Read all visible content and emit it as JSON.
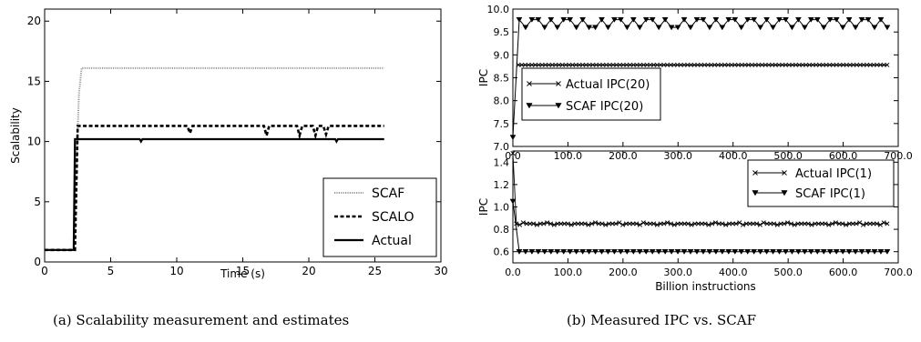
{
  "captions": {
    "a": "(a) Scalability measurement and estimates",
    "b": "(b) Measured IPC vs. SCAF"
  },
  "chart_data": [
    {
      "id": "a",
      "type": "line",
      "xlabel": "Time (s)",
      "ylabel": "Scalability",
      "xlim": [
        0,
        30
      ],
      "ylim": [
        0,
        21
      ],
      "xticks": [
        0,
        5,
        10,
        15,
        20,
        25,
        30
      ],
      "yticks": [
        0,
        5,
        10,
        15,
        20
      ],
      "legend": "bottom-right",
      "series": [
        {
          "name": "SCAF",
          "style": "dotted-gray",
          "x": [
            0,
            2.2,
            2.4,
            2.6,
            2.8,
            25.7
          ],
          "y": [
            1,
            1,
            8,
            14,
            16.1,
            16.1
          ]
        },
        {
          "name": "SCALO",
          "style": "dashed",
          "x": [
            0,
            2.3,
            2.5,
            3,
            10.8,
            11,
            11.2,
            16.6,
            16.8,
            17,
            19.1,
            19.3,
            19.5,
            20.3,
            20.5,
            20.7,
            21.1,
            21.3,
            21.5,
            25.7
          ],
          "y": [
            1,
            1,
            11.3,
            11.3,
            11.3,
            10.7,
            11.3,
            11.3,
            10.5,
            11.3,
            11.3,
            10.5,
            11.3,
            11.3,
            10.5,
            11.3,
            11.3,
            10.6,
            11.3,
            11.3
          ]
        },
        {
          "name": "Actual",
          "style": "solid",
          "x": [
            0,
            2.2,
            2.3,
            7.2,
            7.3,
            7.4,
            22.0,
            22.1,
            22.2,
            25.7
          ],
          "y": [
            1,
            1,
            10.2,
            10.2,
            10.0,
            10.2,
            10.2,
            10.0,
            10.2,
            10.2
          ]
        }
      ]
    },
    {
      "id": "b-top",
      "type": "line",
      "xlabel": "",
      "ylabel": "IPC",
      "xlim": [
        0,
        700
      ],
      "ylim": [
        7.0,
        10.0
      ],
      "xticks": [
        0,
        100,
        200,
        300,
        400,
        500,
        600,
        700
      ],
      "xticklabels": [
        "0.0",
        "100.0",
        "200.0",
        "300.0",
        "400.0",
        "500.0",
        "600.0",
        "700.0"
      ],
      "yticks": [
        7.0,
        7.5,
        8.0,
        8.5,
        9.0,
        9.5,
        10.0
      ],
      "yticklabels": [
        "7.0",
        "7.5",
        "8.0",
        "8.5",
        "9.0",
        "9.5",
        "10.0"
      ],
      "legend": "center-left",
      "series": [
        {
          "name": "Actual IPC(20)",
          "marker": "x",
          "x_start": 10,
          "x_end": 680,
          "n_points": 110,
          "value": 8.78
        },
        {
          "name": "SCAF IPC(20)",
          "marker": "triangle-down",
          "x_start": 0,
          "x_end": 680,
          "n_points": 60,
          "start_value": 7.2,
          "high": 9.77,
          "low": 9.6,
          "period": 30
        }
      ]
    },
    {
      "id": "b-bottom",
      "type": "line",
      "xlabel": "Billion instructions",
      "ylabel": "IPC",
      "xlim": [
        0,
        700
      ],
      "ylim": [
        0.5,
        1.5
      ],
      "xticks": [
        0,
        100,
        200,
        300,
        400,
        500,
        600,
        700
      ],
      "xticklabels": [
        "0.0",
        "100.0",
        "200.0",
        "300.0",
        "400.0",
        "500.0",
        "600.0",
        "700.0"
      ],
      "yticks": [
        0.6,
        0.8,
        1.0,
        1.2,
        1.4
      ],
      "yticklabels": [
        "0.6",
        "0.8",
        "1.0",
        "1.2",
        "1.4"
      ],
      "legend": "top-right",
      "series": [
        {
          "name": "Actual IPC(1)",
          "marker": "x",
          "x_start": 0,
          "x_end": 680,
          "n_points": 110,
          "start_value": 1.48,
          "value": 0.85,
          "jitter": 0.01
        },
        {
          "name": "SCAF IPC(1)",
          "marker": "triangle-down",
          "x_start": 0,
          "x_end": 680,
          "n_points": 60,
          "start_value": 1.05,
          "value": 0.6
        }
      ]
    }
  ]
}
